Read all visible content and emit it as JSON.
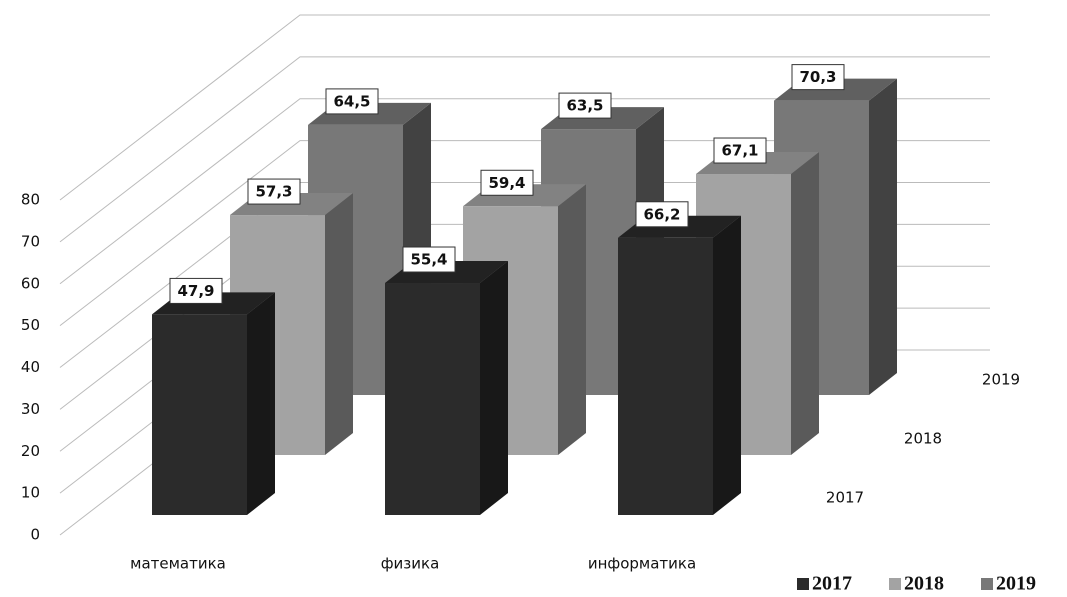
{
  "chart_data": {
    "type": "bar3d",
    "categories": [
      "математика",
      "физика",
      "информатика"
    ],
    "series": [
      {
        "name": "2017",
        "color": "#2b2b2b",
        "values": [
          47.9,
          55.4,
          66.2
        ],
        "value_labels": [
          "47,9",
          "55,4",
          "66,2"
        ]
      },
      {
        "name": "2018",
        "color": "#a3a3a3",
        "values": [
          57.3,
          59.4,
          67.1
        ],
        "value_labels": [
          "57,3",
          "59,4",
          "67,1"
        ]
      },
      {
        "name": "2019",
        "color": "#787878",
        "values": [
          64.5,
          63.5,
          70.3
        ],
        "value_labels": [
          "64,5",
          "63,5",
          "70,3"
        ]
      }
    ],
    "ylim": [
      0,
      80
    ],
    "yticks": [
      0,
      10,
      20,
      30,
      40,
      50,
      60,
      70,
      80
    ],
    "grid": true
  }
}
